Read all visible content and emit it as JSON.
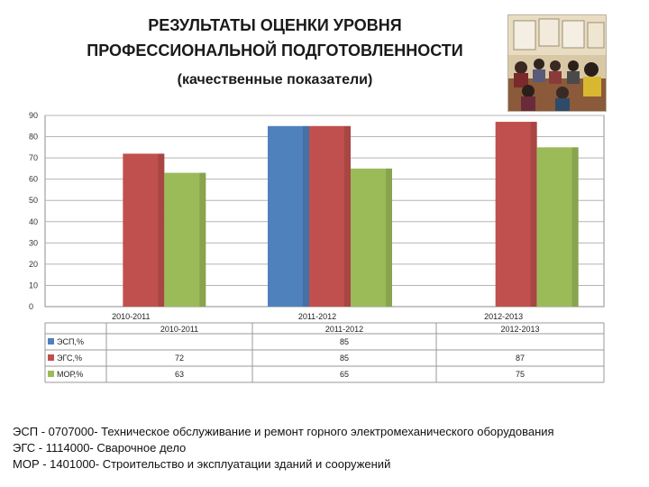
{
  "header": {
    "line1": "РЕЗУЛЬТАТЫ ОЦЕНКИ УРОВНЯ",
    "line2": "ПРОФЕССИОНАЛЬНОЙ ПОДГОТОВЛЕННОСТИ",
    "line3": "(качественные показатели)"
  },
  "colors": {
    "ЭСП": "#4f81bd",
    "ЭГС": "#c0504d",
    "МОР": "#9bbb59"
  },
  "chart_data": {
    "type": "bar",
    "categories": [
      "2010-2011",
      "2011-2012",
      "2012-2013"
    ],
    "series": [
      {
        "name": "ЭСП,%",
        "values": [
          null,
          85,
          null
        ]
      },
      {
        "name": "ЭГС,%",
        "values": [
          72,
          85,
          87
        ]
      },
      {
        "name": "МОР,%",
        "values": [
          63,
          65,
          75
        ]
      }
    ],
    "ylim": [
      0,
      90
    ],
    "yticks": [
      0,
      10,
      20,
      30,
      40,
      50,
      60,
      70,
      80,
      90
    ],
    "grid": true,
    "legend": "data-table"
  },
  "footnotes": [
    "ЭСП - 0707000- Техническое обслуживание и ремонт горного электромеханического оборудования",
    "ЭГС - 1114000- Сварочное дело",
    "МОР - 1401000- Строительство и эксплуатации зданий и сооружений"
  ]
}
